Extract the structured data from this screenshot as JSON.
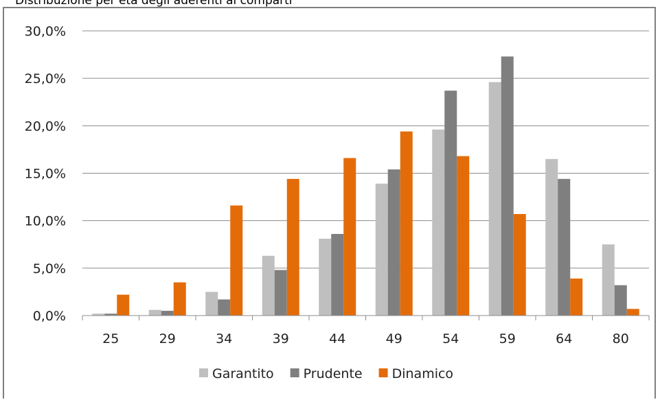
{
  "chart_data": {
    "type": "bar",
    "title": "Distribuzione per età degli aderenti ai comparti",
    "xlabel": "",
    "ylabel": "",
    "categories": [
      "25",
      "29",
      "34",
      "39",
      "44",
      "49",
      "54",
      "59",
      "64",
      "80"
    ],
    "series": [
      {
        "name": "Garantito",
        "color": "#bfbfbf",
        "values": [
          0.2,
          0.6,
          2.5,
          6.3,
          8.1,
          13.9,
          19.6,
          24.6,
          16.5,
          7.5
        ]
      },
      {
        "name": "Prudente",
        "color": "#7f7f7f",
        "values": [
          0.2,
          0.5,
          1.7,
          4.8,
          8.6,
          15.4,
          23.7,
          27.3,
          14.4,
          3.2
        ]
      },
      {
        "name": "Dinamico",
        "color": "#e36c09",
        "values": [
          2.2,
          3.5,
          11.6,
          14.4,
          16.6,
          19.4,
          16.8,
          10.7,
          3.9,
          0.7
        ]
      }
    ],
    "ylim": [
      0,
      30
    ],
    "yticks": [
      0,
      5,
      10,
      15,
      20,
      25,
      30
    ],
    "ytick_labels": [
      "0,0%",
      "5,0%",
      "10,0%",
      "15,0%",
      "20,0%",
      "25,0%",
      "30,0%"
    ],
    "grid": true,
    "legend_position": "bottom"
  }
}
